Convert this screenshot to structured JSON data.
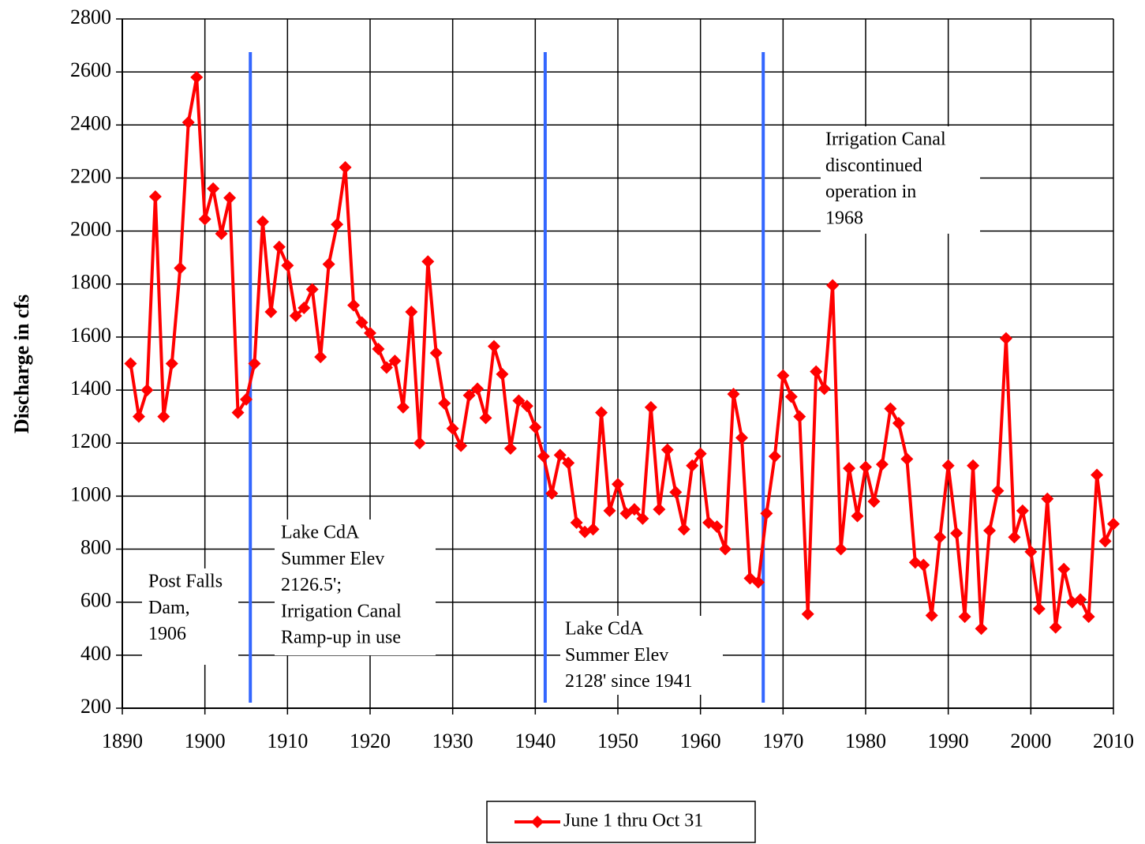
{
  "chart_data": {
    "type": "line",
    "ylabel": "Discharge in cfs",
    "x": [
      1891,
      1892,
      1893,
      1894,
      1895,
      1896,
      1897,
      1898,
      1899,
      1900,
      1901,
      1902,
      1903,
      1904,
      1905,
      1906,
      1907,
      1908,
      1909,
      1910,
      1911,
      1912,
      1913,
      1914,
      1915,
      1916,
      1917,
      1918,
      1919,
      1920,
      1921,
      1922,
      1923,
      1924,
      1925,
      1926,
      1927,
      1928,
      1929,
      1930,
      1931,
      1932,
      1933,
      1934,
      1935,
      1936,
      1937,
      1938,
      1939,
      1940,
      1941,
      1942,
      1943,
      1944,
      1945,
      1946,
      1947,
      1948,
      1949,
      1950,
      1951,
      1952,
      1953,
      1954,
      1955,
      1956,
      1957,
      1958,
      1959,
      1960,
      1961,
      1962,
      1963,
      1964,
      1965,
      1966,
      1967,
      1968,
      1969,
      1970,
      1971,
      1972,
      1973,
      1974,
      1975,
      1976,
      1977,
      1978,
      1979,
      1980,
      1981,
      1982,
      1983,
      1984,
      1985,
      1986,
      1987,
      1988,
      1989,
      1990,
      1991,
      1992,
      1993,
      1994,
      1995,
      1996,
      1997,
      1998,
      1999,
      2000,
      2001,
      2002,
      2003,
      2004,
      2005,
      2006,
      2007,
      2008,
      2009,
      2010
    ],
    "series": [
      {
        "name": "June 1 thru Oct 31",
        "color": "#ff0000",
        "values": [
          1500,
          1300,
          1400,
          2130,
          1300,
          1500,
          1860,
          2410,
          2580,
          2045,
          2160,
          1990,
          2125,
          1315,
          1365,
          1500,
          2035,
          1695,
          1940,
          1870,
          1680,
          1710,
          1780,
          1525,
          1875,
          2025,
          2240,
          1720,
          1655,
          1615,
          1555,
          1485,
          1510,
          1335,
          1695,
          1200,
          1885,
          1540,
          1350,
          1255,
          1190,
          1380,
          1405,
          1295,
          1565,
          1460,
          1180,
          1360,
          1340,
          1260,
          1150,
          1010,
          1155,
          1125,
          900,
          865,
          875,
          1315,
          945,
          1045,
          935,
          950,
          915,
          1335,
          950,
          1175,
          1015,
          875,
          1115,
          1160,
          900,
          885,
          800,
          1385,
          1220,
          690,
          675,
          935,
          1150,
          1455,
          1375,
          1300,
          555,
          1470,
          1405,
          1795,
          800,
          1105,
          925,
          1110,
          980,
          1120,
          1330,
          1275,
          1140,
          750,
          740,
          550,
          845,
          1115,
          860,
          545,
          1115,
          500,
          870,
          1020,
          1595,
          845,
          945,
          790,
          575,
          990,
          505,
          725,
          600,
          610,
          545,
          1080,
          830,
          895
        ]
      }
    ],
    "xlim": [
      1890,
      2010
    ],
    "xticks": [
      1890,
      1900,
      1910,
      1920,
      1930,
      1940,
      1950,
      1960,
      1970,
      1980,
      1990,
      2000,
      2010
    ],
    "ylim": [
      200,
      2800
    ],
    "yticks": [
      200,
      400,
      600,
      800,
      1000,
      1200,
      1400,
      1600,
      1800,
      2000,
      2200,
      2400,
      2600,
      2800
    ],
    "grid": true,
    "reference_lines": {
      "color": "#3366ff",
      "x": [
        1905.5,
        1941.2,
        1967.6
      ]
    },
    "annotations": [
      {
        "lines": [
          "Post Falls",
          "Dam,",
          "1906"
        ]
      },
      {
        "lines": [
          "Lake CdA",
          "Summer Elev",
          "2126.5';",
          "Irrigation Canal",
          "Ramp-up in use"
        ]
      },
      {
        "lines": [
          "Lake CdA",
          "Summer Elev",
          "2128' since 1941"
        ]
      },
      {
        "lines": [
          "Irrigation Canal",
          "discontinued",
          "operation in",
          "1968"
        ]
      }
    ],
    "legend": "bottom"
  }
}
